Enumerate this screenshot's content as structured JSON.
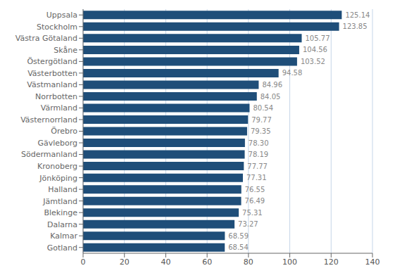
{
  "chart_data": {
    "type": "bar",
    "orientation": "horizontal",
    "categories": [
      "Gotland",
      "Kalmar",
      "Dalarna",
      "Blekinge",
      "Jämtland",
      "Halland",
      "Jönköping",
      "Kronoberg",
      "Södermanland",
      "Gävleborg",
      "Örebro",
      "Västernorrland",
      "Värmland",
      "Norrbotten",
      "Västmanland",
      "Västerbotten",
      "Östergötland",
      "Skåne",
      "Västra Götaland",
      "Stockholm",
      "Uppsala"
    ],
    "values": [
      68.54,
      68.59,
      73.27,
      75.31,
      76.49,
      76.55,
      77.31,
      77.77,
      78.19,
      78.3,
      79.35,
      79.77,
      80.54,
      84.05,
      84.96,
      94.58,
      103.52,
      104.56,
      105.77,
      123.85,
      125.14
    ],
    "value_labels": [
      "68.54",
      "68.59",
      "73.27",
      "75.31",
      "76.49",
      "76.55",
      "77.31",
      "77.77",
      "78.19",
      "78.30",
      "79.35",
      "79.77",
      "80.54",
      "84.05",
      "84.96",
      "94.58",
      "103.52",
      "104.56",
      "105.77",
      "123.85",
      "125.14"
    ],
    "color": "#1F4E79",
    "xlim": [
      0,
      140
    ],
    "xticks": [
      0,
      20,
      40,
      60,
      80,
      100,
      120,
      140
    ],
    "grid": true,
    "data_labels": true
  }
}
